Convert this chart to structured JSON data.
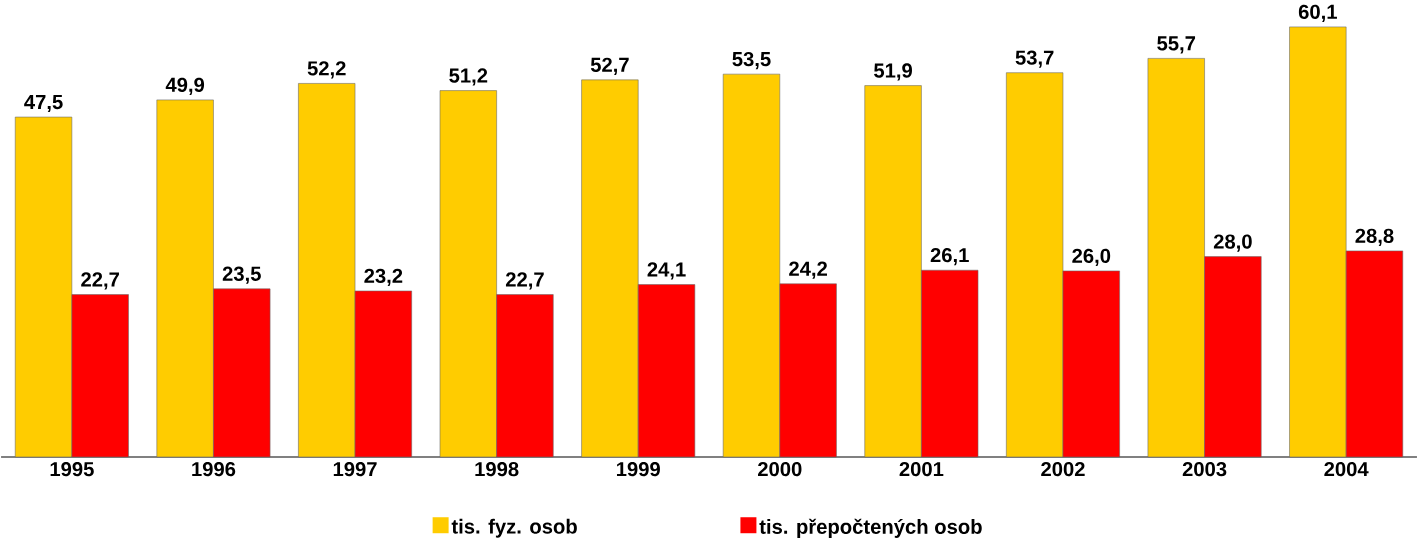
{
  "chart_data": {
    "type": "bar",
    "categories": [
      "1995",
      "1996",
      "1997",
      "1998",
      "1999",
      "2000",
      "2001",
      "2002",
      "2003",
      "2004"
    ],
    "series": [
      {
        "name": "tis. fyz. osob",
        "color": "#ffcc00",
        "values": [
          47.5,
          49.9,
          52.2,
          51.2,
          52.7,
          53.5,
          51.9,
          53.7,
          55.7,
          60.1
        ],
        "value_labels": [
          "47,5",
          "49,9",
          "52,2",
          "51,2",
          "52,7",
          "53,5",
          "51,9",
          "53,7",
          "55,7",
          "60,1"
        ]
      },
      {
        "name": "tis. přepočtených osob",
        "color": "#ff0000",
        "values": [
          22.7,
          23.5,
          23.2,
          22.7,
          24.1,
          24.2,
          26.1,
          26.0,
          28.0,
          28.8
        ],
        "value_labels": [
          "22,7",
          "23,5",
          "23,2",
          "22,7",
          "24,1",
          "24,2",
          "26,1",
          "26,0",
          "28,0",
          "28,8"
        ]
      }
    ],
    "legend": "bottom"
  }
}
